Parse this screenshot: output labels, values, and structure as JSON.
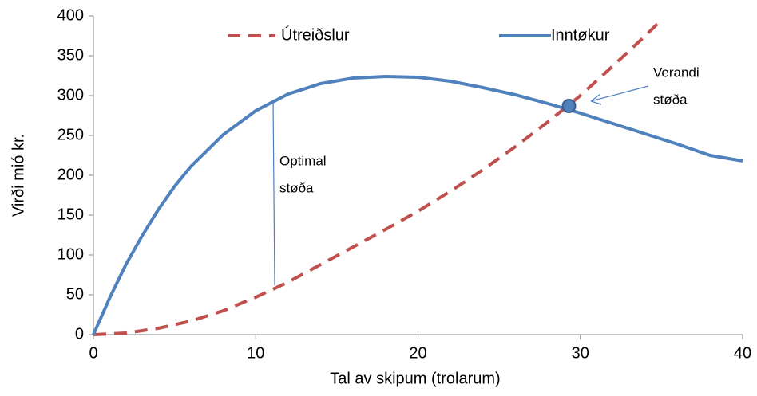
{
  "chart_data": {
    "type": "line",
    "xlabel": "Tal av skipum (trolarum)",
    "ylabel": "Virði mió kr.",
    "xlim": [
      0,
      40
    ],
    "xticks": [
      0,
      10,
      20,
      30,
      40
    ],
    "ylim": [
      0,
      400
    ],
    "yticks": [
      0,
      50,
      100,
      150,
      200,
      250,
      300,
      350,
      400
    ],
    "grid": false,
    "legend": "top",
    "series": [
      {
        "name": "Útreiðslur",
        "color": "#c0504d",
        "dash": true,
        "x": [
          0,
          2,
          4,
          6,
          8,
          10,
          12,
          14,
          16,
          18,
          20,
          22,
          24,
          26,
          28,
          30,
          32,
          34,
          35
        ],
        "values": [
          0,
          2,
          8,
          17,
          30,
          47,
          66,
          88,
          110,
          132,
          155,
          180,
          207,
          236,
          267,
          300,
          337,
          375,
          395
        ]
      },
      {
        "name": "Inntøkur",
        "color": "#4f81bd",
        "dash": false,
        "x": [
          0,
          1,
          2,
          3,
          4,
          5,
          6,
          8,
          10,
          12,
          14,
          16,
          18,
          20,
          22,
          24,
          26,
          28,
          30,
          32,
          34,
          36,
          38,
          40
        ],
        "values": [
          0,
          46,
          88,
          124,
          157,
          186,
          211,
          251,
          281,
          302,
          315,
          322,
          324,
          323,
          318,
          310,
          301,
          290,
          278,
          265,
          252,
          239,
          225,
          218
        ]
      }
    ],
    "point": {
      "x": 29.3,
      "y": 287,
      "color": "#4f81bd"
    },
    "annotations": [
      {
        "lines": [
          "Optimal",
          "støða"
        ]
      },
      {
        "lines": [
          "Verandi",
          "støða"
        ]
      }
    ]
  }
}
